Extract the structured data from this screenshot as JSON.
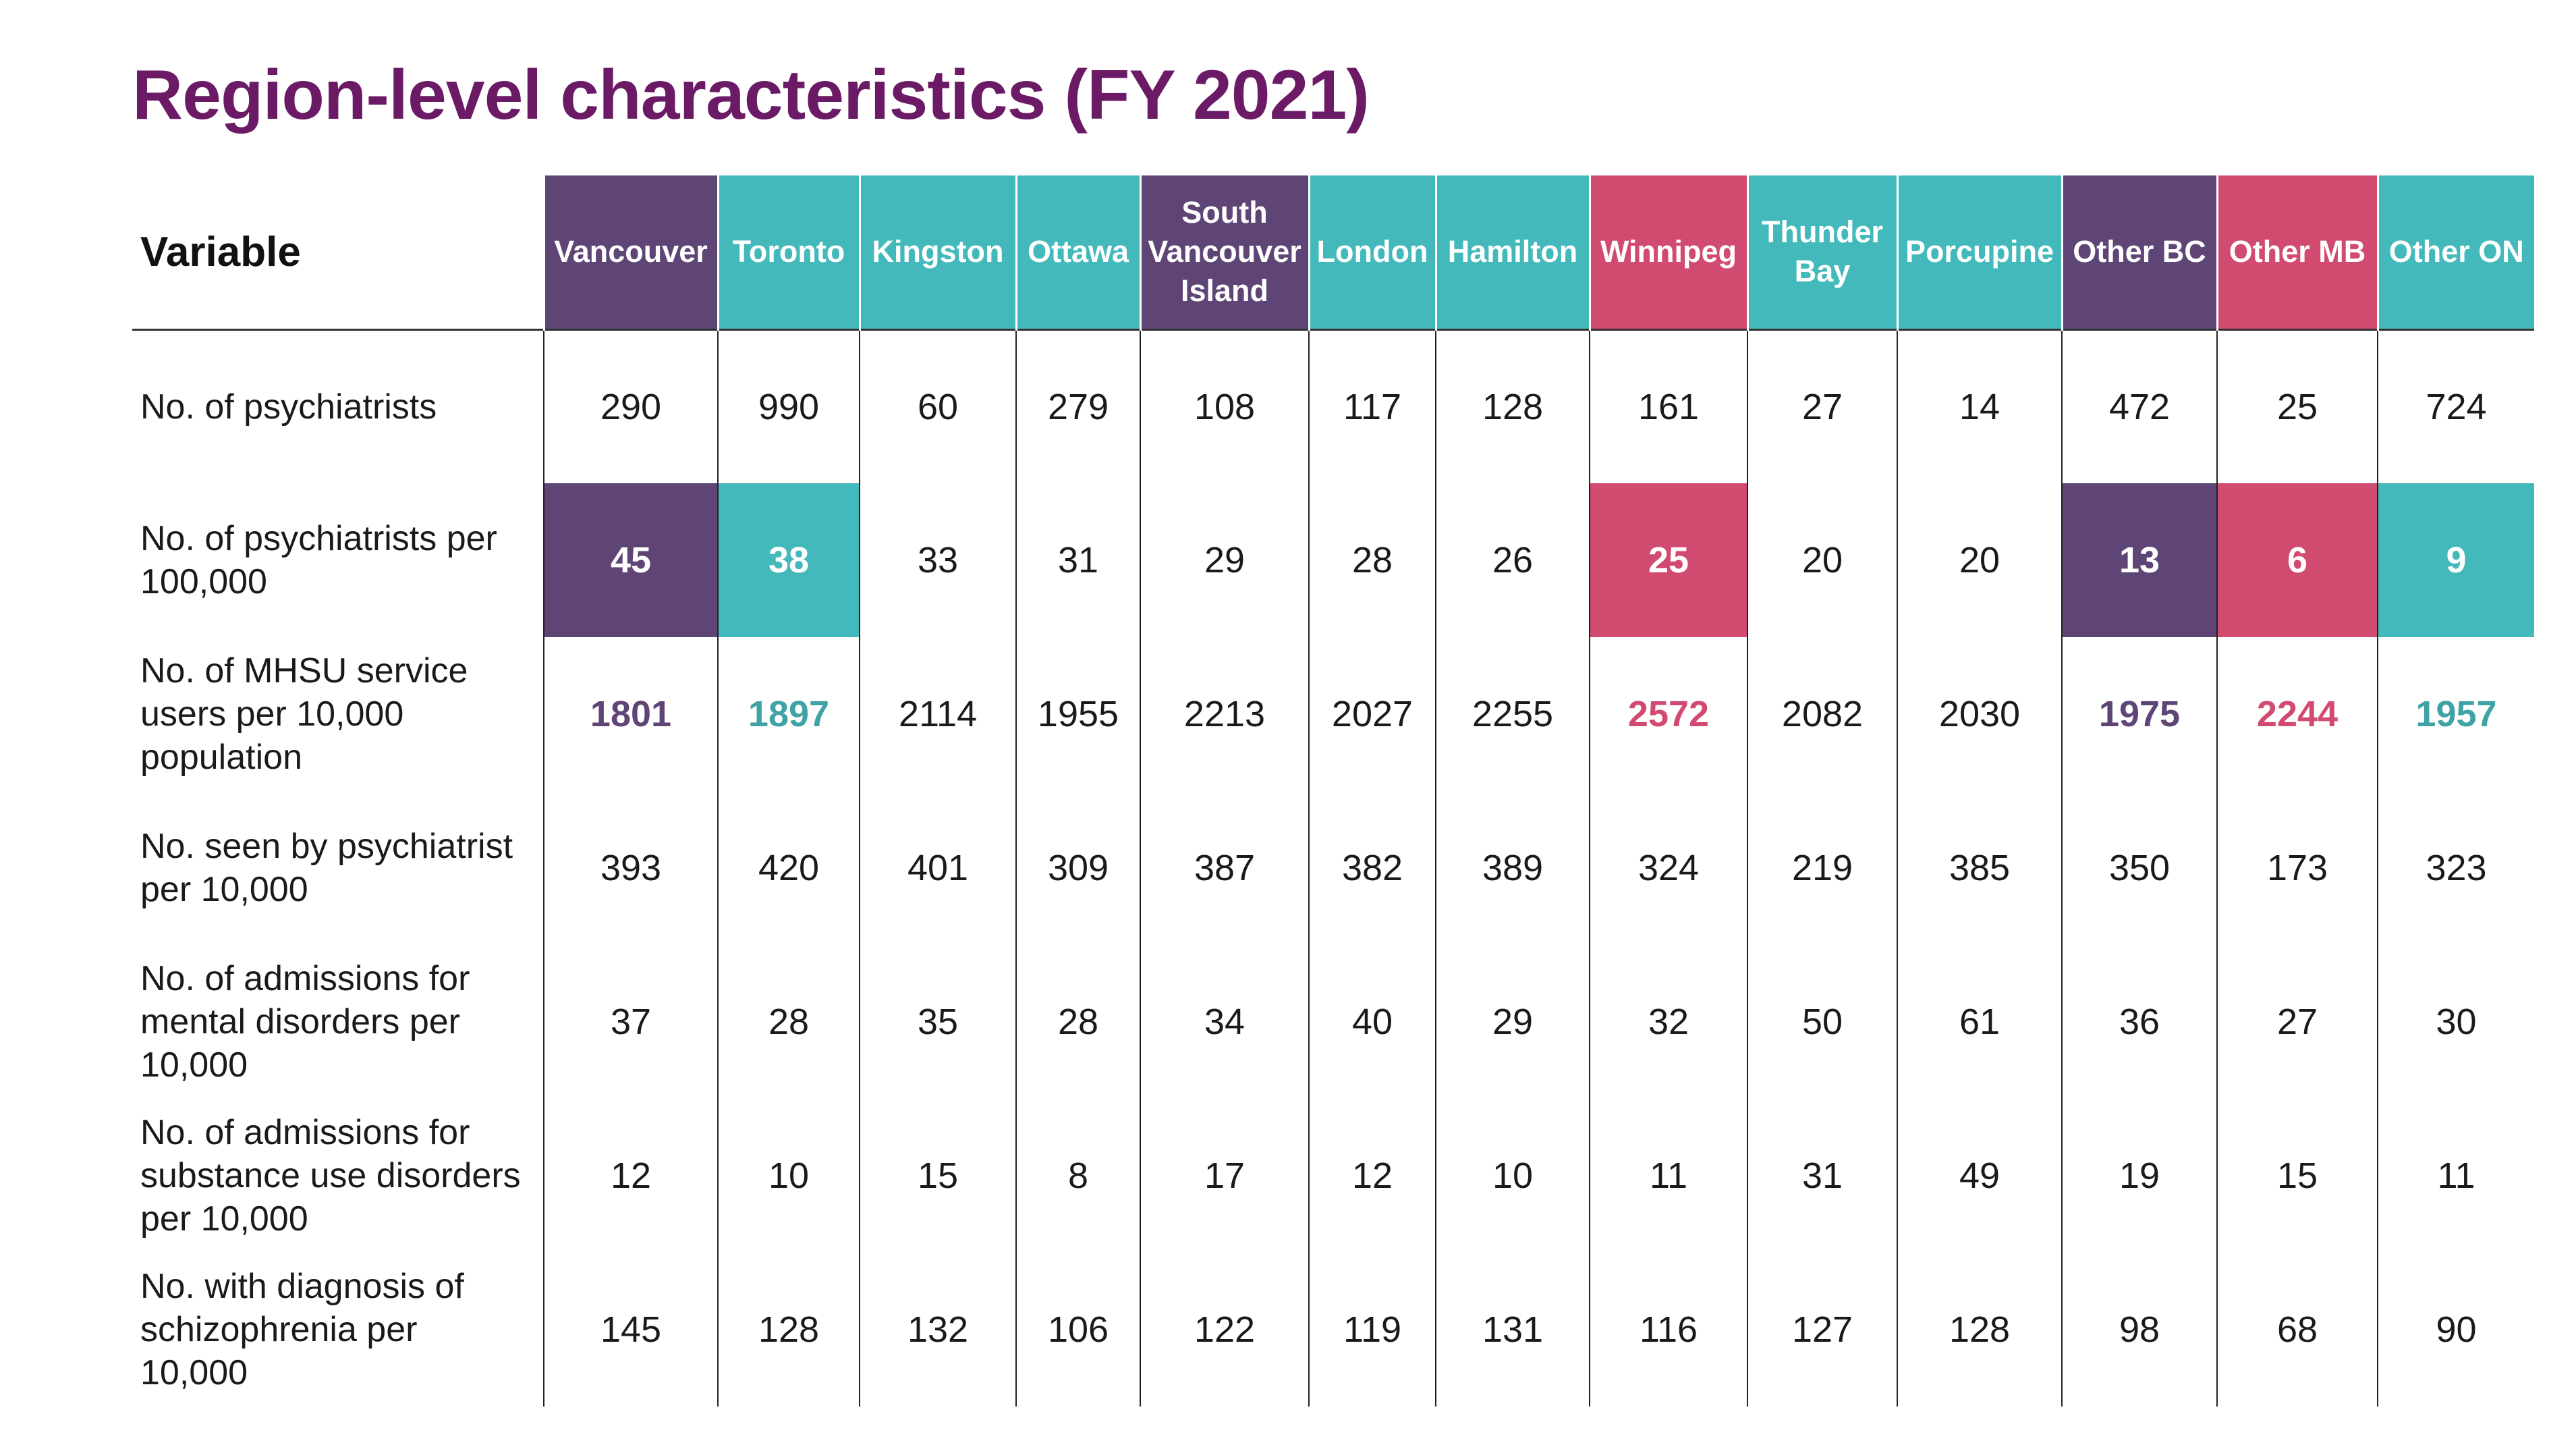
{
  "title": "Region-level characteristics (FY 2021)",
  "colors": {
    "purple": "#5e4576",
    "teal": "#44b9bb",
    "pink": "#d14a70",
    "title": "#6b1a66"
  },
  "variable_header": "Variable",
  "regions": [
    {
      "name": "Vancouver",
      "color": "purple"
    },
    {
      "name": "Toronto",
      "color": "teal"
    },
    {
      "name": "Kingston",
      "color": "teal"
    },
    {
      "name": "Ottawa",
      "color": "teal"
    },
    {
      "name": "South Vancouver Island",
      "color": "purple"
    },
    {
      "name": "London",
      "color": "teal"
    },
    {
      "name": "Hamilton",
      "color": "teal"
    },
    {
      "name": "Winnipeg",
      "color": "pink"
    },
    {
      "name": "Thunder Bay",
      "color": "teal"
    },
    {
      "name": "Porcupine",
      "color": "teal"
    },
    {
      "name": "Other BC",
      "color": "purple"
    },
    {
      "name": "Other MB",
      "color": "pink"
    },
    {
      "name": "Other ON",
      "color": "teal"
    }
  ],
  "rows": [
    {
      "label": "No. of psychiatrists",
      "style": "plain",
      "values": [
        "290",
        "990",
        "60",
        "279",
        "108",
        "117",
        "128",
        "161",
        "27",
        "14",
        "472",
        "25",
        "724"
      ]
    },
    {
      "label": "No. of psychiatrists per 100,000",
      "style": "fill",
      "values": [
        "45",
        "38",
        "33",
        "31",
        "29",
        "28",
        "26",
        "25",
        "20",
        "20",
        "13",
        "6",
        "9"
      ]
    },
    {
      "label": "No. of MHSU service users per 10,000 population",
      "style": "text",
      "values": [
        "1801",
        "1897",
        "2114",
        "1955",
        "2213",
        "2027",
        "2255",
        "2572",
        "2082",
        "2030",
        "1975",
        "2244",
        "1957"
      ]
    },
    {
      "label": "No. seen by psychiatrist per 10,000",
      "style": "plain",
      "values": [
        "393",
        "420",
        "401",
        "309",
        "387",
        "382",
        "389",
        "324",
        "219",
        "385",
        "350",
        "173",
        "323"
      ]
    },
    {
      "label": "No. of admissions for mental disorders per 10,000",
      "style": "plain",
      "values": [
        "37",
        "28",
        "35",
        "28",
        "34",
        "40",
        "29",
        "32",
        "50",
        "61",
        "36",
        "27",
        "30"
      ]
    },
    {
      "label": "No. of admissions for substance use disorders per 10,000",
      "style": "plain",
      "values": [
        "12",
        "10",
        "15",
        "8",
        "17",
        "12",
        "10",
        "11",
        "31",
        "49",
        "19",
        "15",
        "11"
      ]
    },
    {
      "label": "No. with diagnosis of schizophrenia per 10,000",
      "style": "plain",
      "values": [
        "145",
        "128",
        "132",
        "106",
        "122",
        "119",
        "131",
        "116",
        "127",
        "128",
        "98",
        "68",
        "90"
      ]
    }
  ],
  "highlighted_columns": [
    0,
    1,
    7,
    10,
    11,
    12
  ]
}
